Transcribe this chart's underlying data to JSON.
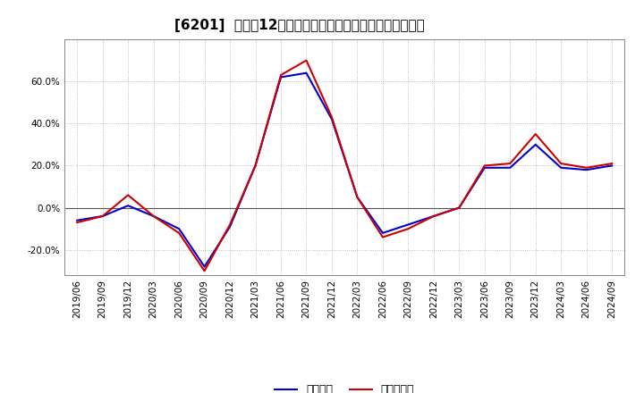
{
  "title": "[6201]  利益だ12か月移動合計の対前年同期増減率の推移",
  "x_labels": [
    "2019/06",
    "2019/09",
    "2019/12",
    "2020/03",
    "2020/06",
    "2020/09",
    "2020/12",
    "2021/03",
    "2021/06",
    "2021/09",
    "2021/12",
    "2022/03",
    "2022/06",
    "2022/09",
    "2022/12",
    "2023/03",
    "2023/06",
    "2023/09",
    "2023/12",
    "2024/03",
    "2024/06",
    "2024/09"
  ],
  "keijo_rieki": [
    -0.06,
    -0.04,
    0.01,
    -0.04,
    -0.1,
    -0.28,
    -0.09,
    0.2,
    0.62,
    0.64,
    0.42,
    0.05,
    -0.12,
    -0.08,
    -0.04,
    0.0,
    0.19,
    0.19,
    0.3,
    0.19,
    0.18,
    0.2
  ],
  "junrieki": [
    -0.07,
    -0.04,
    0.06,
    -0.04,
    -0.12,
    -0.3,
    -0.08,
    0.2,
    0.63,
    0.7,
    0.43,
    0.05,
    -0.14,
    -0.1,
    -0.04,
    0.0,
    0.2,
    0.21,
    0.35,
    0.21,
    0.19,
    0.21
  ],
  "keijo_color": "#0000cc",
  "junrieki_color": "#cc0000",
  "background_color": "#ffffff",
  "plot_bg_color": "#ffffff",
  "grid_color": "#aaaaaa",
  "zero_line_color": "#555555",
  "ylim": [
    -0.32,
    0.8
  ],
  "yticks": [
    -0.2,
    0.0,
    0.2,
    0.4,
    0.6
  ],
  "legend_labels": [
    "経常利益",
    "当期純利益"
  ],
  "title_fontsize": 11,
  "axis_fontsize": 7.5,
  "legend_fontsize": 9,
  "line_width": 1.5
}
